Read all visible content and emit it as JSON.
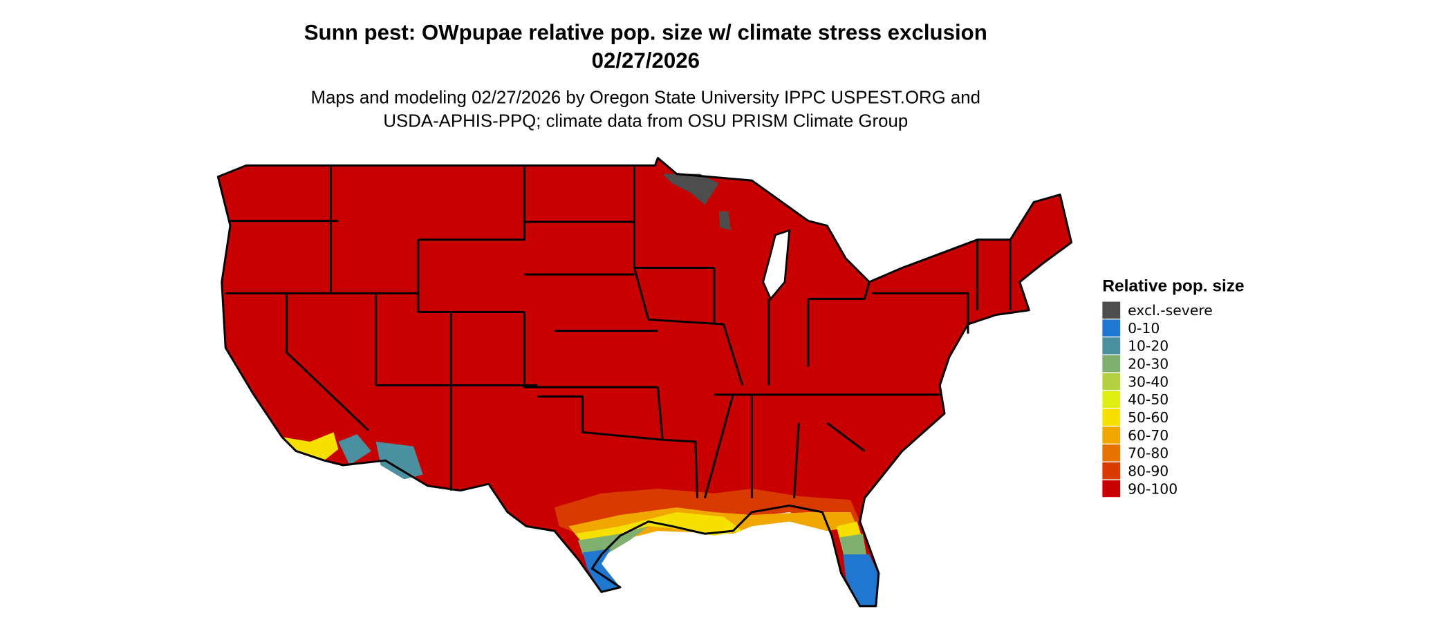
{
  "header": {
    "title_lines": [
      "Sunn pest: OWpupae relative pop. size w/ climate stress exclusion",
      "02/27/2026"
    ],
    "subtitle_lines": [
      "Maps and modeling 02/27/2026 by Oregon State University IPPC USPEST.ORG and",
      "USDA-APHIS-PPQ; climate data from OSU PRISM Climate Group"
    ]
  },
  "legend": {
    "title": "Relative pop. size",
    "items": [
      {
        "label": "excl.-severe",
        "color": "#4d4d4d"
      },
      {
        "label": "0-10",
        "color": "#1f77d0"
      },
      {
        "label": "10-20",
        "color": "#4a90a0"
      },
      {
        "label": "20-30",
        "color": "#7fb070"
      },
      {
        "label": "30-40",
        "color": "#b5d040"
      },
      {
        "label": "40-50",
        "color": "#e0ef10"
      },
      {
        "label": "50-60",
        "color": "#f5e000"
      },
      {
        "label": "60-70",
        "color": "#f0a800"
      },
      {
        "label": "70-80",
        "color": "#e67300"
      },
      {
        "label": "80-90",
        "color": "#d83a00"
      },
      {
        "label": "90-100",
        "color": "#c80000"
      }
    ]
  }
}
